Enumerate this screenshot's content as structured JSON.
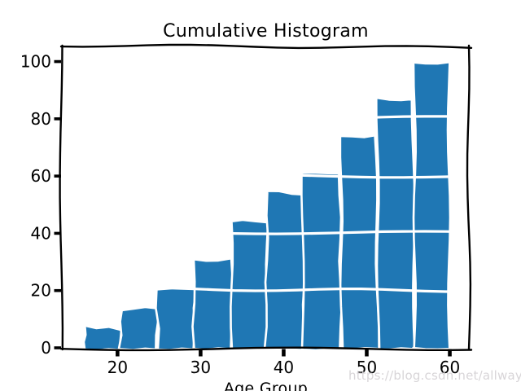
{
  "watermark": {
    "text": "https://blog.csdn.net/allway2",
    "color": "#d8d5d8"
  },
  "chart_data": {
    "type": "bar",
    "subtype": "cumulative-histogram",
    "style": "xkcd-sketch",
    "title": "Cumulative Histogram",
    "xlabel": "Age Group",
    "ylabel": "",
    "bar_color": "#1f77b4",
    "bar_edge_color": "#ffffff",
    "spine_color": "#000000",
    "grid_color": "#ffffff",
    "bin_edges": [
      16.0,
      20.4,
      24.8,
      29.2,
      33.6,
      38.0,
      42.4,
      46.8,
      51.2,
      55.6,
      60.0
    ],
    "cumulative_counts": [
      7,
      14,
      21,
      31,
      44,
      54,
      61,
      74,
      87,
      99
    ],
    "x_ticks": [
      20,
      30,
      40,
      50,
      60
    ],
    "y_ticks": [
      0,
      20,
      40,
      60,
      80,
      100
    ],
    "gridlines_y": [
      20,
      40,
      60,
      80
    ],
    "xlim": [
      13.4,
      62.3
    ],
    "ylim": [
      0,
      105
    ],
    "legend": "none",
    "grid": "white-overlay-on-bars"
  }
}
